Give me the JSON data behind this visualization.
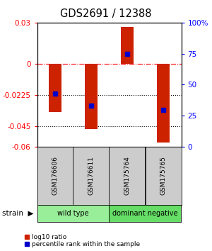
{
  "title": "GDS2691 / 12388",
  "samples": [
    "GSM176606",
    "GSM176611",
    "GSM175764",
    "GSM175765"
  ],
  "log10_ratio": [
    -0.035,
    -0.047,
    0.027,
    -0.057
  ],
  "percentile_rank_pct": [
    43,
    33,
    75,
    30
  ],
  "bar_color": "#cc2200",
  "dot_color": "#0000cc",
  "ylim_left": [
    -0.06,
    0.03
  ],
  "ylim_right": [
    0,
    100
  ],
  "yticks_left": [
    0.03,
    0.0,
    -0.0225,
    -0.045,
    -0.06
  ],
  "ytick_labels_left": [
    "0.03",
    "0",
    "-0.0225",
    "-0.045",
    "-0.06"
  ],
  "yticks_right_vals": [
    100,
    75,
    50,
    25,
    0
  ],
  "yticks_right_labels": [
    "100%",
    "75",
    "50",
    "25",
    "0"
  ],
  "dotted_lines": [
    -0.0225,
    -0.045
  ],
  "groups": [
    {
      "label": "wild type",
      "cols": [
        0,
        1
      ],
      "color": "#99ee99"
    },
    {
      "label": "dominant negative",
      "cols": [
        2,
        3
      ],
      "color": "#66dd66"
    }
  ],
  "background_color": "#ffffff",
  "bar_width": 0.35,
  "legend_items": [
    {
      "color": "#cc2200",
      "label": "log10 ratio"
    },
    {
      "color": "#0000cc",
      "label": "percentile rank within the sample"
    }
  ]
}
